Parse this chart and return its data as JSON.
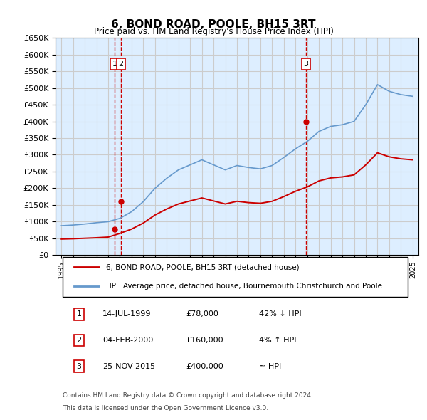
{
  "title": "6, BOND ROAD, POOLE, BH15 3RT",
  "subtitle": "Price paid vs. HM Land Registry's House Price Index (HPI)",
  "hpi_label": "HPI: Average price, detached house, Bournemouth Christchurch and Poole",
  "property_label": "6, BOND ROAD, POOLE, BH15 3RT (detached house)",
  "footer1": "Contains HM Land Registry data © Crown copyright and database right 2024.",
  "footer2": "This data is licensed under the Open Government Licence v3.0.",
  "sale_dates": [
    1999.54,
    2000.09,
    2015.9
  ],
  "sale_prices": [
    78000,
    160000,
    400000
  ],
  "sale_labels": [
    "1",
    "2",
    "3"
  ],
  "table_rows": [
    [
      "1",
      "14-JUL-1999",
      "£78,000",
      "42% ↓ HPI"
    ],
    [
      "2",
      "04-FEB-2000",
      "£160,000",
      "4% ↑ HPI"
    ],
    [
      "3",
      "25-NOV-2015",
      "£400,000",
      "≈ HPI"
    ]
  ],
  "hpi_years": [
    1995,
    1996,
    1997,
    1998,
    1999,
    2000,
    2001,
    2002,
    2003,
    2004,
    2005,
    2006,
    2007,
    2008,
    2009,
    2010,
    2011,
    2012,
    2013,
    2014,
    2015,
    2016,
    2017,
    2018,
    2019,
    2020,
    2021,
    2022,
    2023,
    2024,
    2025
  ],
  "hpi_values": [
    88000,
    90000,
    93000,
    97000,
    100000,
    110000,
    130000,
    160000,
    200000,
    230000,
    255000,
    270000,
    285000,
    270000,
    255000,
    268000,
    262000,
    258000,
    268000,
    292000,
    318000,
    340000,
    370000,
    385000,
    390000,
    400000,
    450000,
    510000,
    490000,
    480000,
    475000
  ],
  "prop_years": [
    1995,
    1996,
    1997,
    1998,
    1999,
    2000,
    2001,
    2002,
    2003,
    2004,
    2005,
    2006,
    2007,
    2008,
    2009,
    2010,
    2011,
    2012,
    2013,
    2014,
    2015,
    2016,
    2017,
    2018,
    2019,
    2020,
    2021,
    2022,
    2023,
    2024,
    2025
  ],
  "prop_values": [
    48000,
    49000,
    50500,
    52000,
    54000,
    65000,
    78000,
    96000,
    120000,
    138000,
    153000,
    162000,
    171000,
    162000,
    153000,
    161000,
    157000,
    155000,
    161000,
    175000,
    191000,
    204000,
    222000,
    231000,
    234000,
    240000,
    270000,
    306000,
    294000,
    288000,
    285000
  ],
  "ylim": [
    0,
    650000
  ],
  "xlim": [
    1994.5,
    2025.5
  ],
  "line_color_prop": "#cc0000",
  "line_color_hpi": "#6699cc",
  "vline_color": "#cc0000",
  "marker_color": "#cc0000",
  "box_color": "#cc0000",
  "grid_color": "#cccccc",
  "bg_color": "#ddeeff"
}
